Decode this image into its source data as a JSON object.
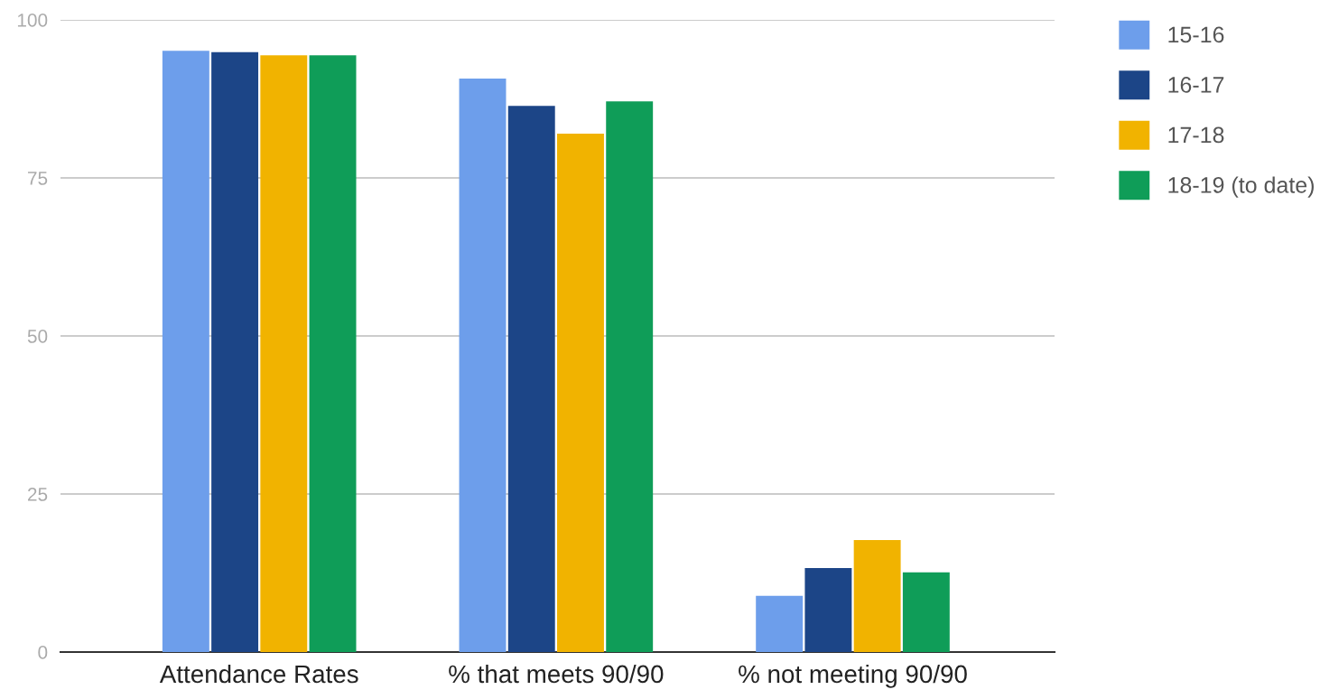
{
  "chart_data": {
    "type": "bar",
    "categories": [
      "Attendance Rates",
      "% that meets 90/90",
      "% not meeting 90/90"
    ],
    "series": [
      {
        "name": "15-16",
        "color": "#6d9eeb",
        "values": [
          95.1,
          90.7,
          8.9
        ]
      },
      {
        "name": "16-17",
        "color": "#1c4587",
        "values": [
          94.9,
          86.4,
          13.3
        ]
      },
      {
        "name": "17-18",
        "color": "#f1b300",
        "values": [
          94.4,
          82.0,
          17.7
        ]
      },
      {
        "name": "18-19 (to date)",
        "color": "#0f9d58",
        "values": [
          94.4,
          87.1,
          12.6
        ]
      }
    ],
    "ylim": [
      0,
      100
    ],
    "yticks": [
      0,
      25,
      50,
      75,
      100
    ],
    "grid": "y",
    "legend": "top right"
  }
}
